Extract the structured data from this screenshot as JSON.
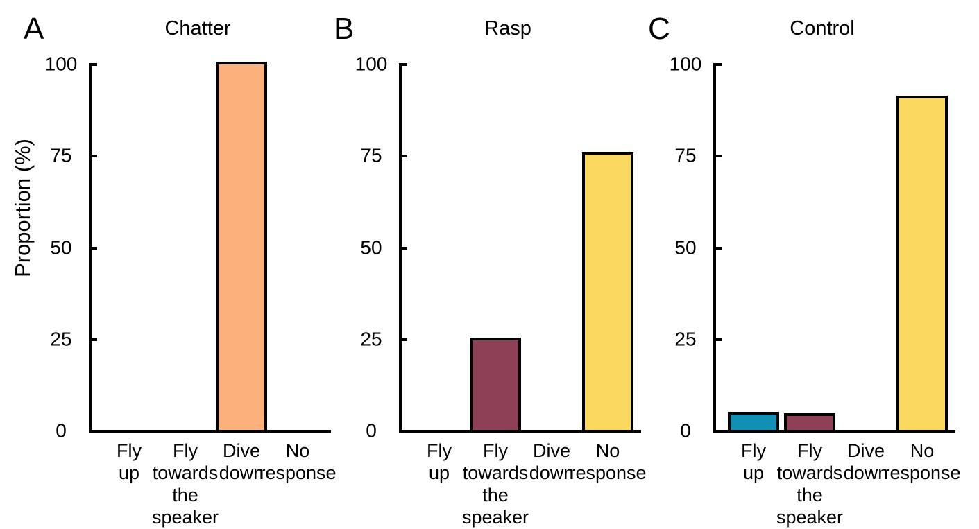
{
  "figure": {
    "background": "#ffffff",
    "axis_color": "#000000",
    "text_color": "#000000"
  },
  "chart_data": [
    {
      "type": "bar",
      "panel_label": "A",
      "title": "Chatter",
      "ylabel": "Proportion (%)",
      "xlabel": "",
      "ylim": [
        0,
        100
      ],
      "yticks": [
        100,
        75,
        50,
        25,
        0
      ],
      "grid": false,
      "categories": [
        "Fly up",
        "Fly towards the speaker",
        "Dive down",
        "No response"
      ],
      "values": [
        0,
        0,
        100.7,
        0
      ],
      "bar_colors": [
        "#118FB4",
        "#8E4156",
        "#FCB17D",
        "#FBD960"
      ]
    },
    {
      "type": "bar",
      "panel_label": "B",
      "title": "Rasp",
      "ylabel": "",
      "xlabel": "",
      "ylim": [
        0,
        100
      ],
      "yticks": [
        100,
        75,
        50,
        25,
        0
      ],
      "grid": false,
      "categories": [
        "Fly up",
        "Fly towards the speaker",
        "Dive down",
        "No response"
      ],
      "values": [
        0,
        25.5,
        0,
        76.2
      ],
      "bar_colors": [
        "#118FB4",
        "#8E4156",
        "#FCB17D",
        "#FBD960"
      ]
    },
    {
      "type": "bar",
      "panel_label": "C",
      "title": "Control",
      "ylabel": "",
      "xlabel": "",
      "ylim": [
        0,
        100
      ],
      "yticks": [
        100,
        75,
        50,
        25,
        0
      ],
      "grid": false,
      "categories": [
        "Fly up",
        "Fly towards the speaker",
        "Dive down",
        "No response"
      ],
      "values": [
        5.3,
        5.0,
        0,
        91.5
      ],
      "bar_colors": [
        "#118FB4",
        "#8E4156",
        "#FCB17D",
        "#FBD960"
      ]
    }
  ]
}
